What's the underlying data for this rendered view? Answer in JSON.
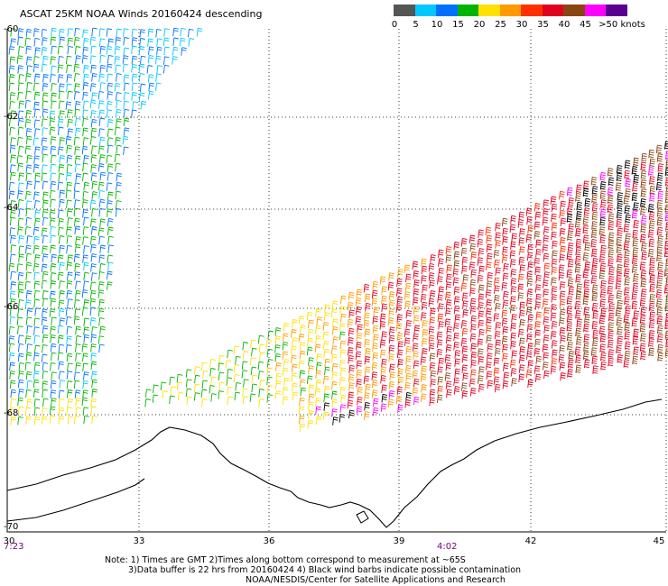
{
  "title": "ASCAT 25KM NOAA Winds 20160424 descending",
  "legend": {
    "colors": [
      "#555555",
      "#00c8ff",
      "#0070ff",
      "#00b400",
      "#ffe000",
      "#ff9a00",
      "#ff3000",
      "#e00020",
      "#8b4513",
      "#ff00ff",
      "#5a0090"
    ],
    "labels": [
      "0",
      "5",
      "10",
      "15",
      "20",
      "25",
      "30",
      "35",
      "40",
      "45",
      ">50 knots"
    ]
  },
  "lat_labels": [
    "-60",
    "-62",
    "-64",
    "-66",
    "-68",
    "-70"
  ],
  "lon_labels": [
    "30",
    "33",
    "36",
    "39",
    "42",
    "45"
  ],
  "times": [
    "7:23",
    "4:02"
  ],
  "notes": [
    "Note: 1) Times are GMT 2)Times along bottom correspond to measurement at ~65S",
    "3)Data buffer is 22 hrs from 20160424 4) Black wind barbs indicate possible contamination",
    "NOAA/NESDIS/Center for Satellite Applications and Research"
  ]
}
